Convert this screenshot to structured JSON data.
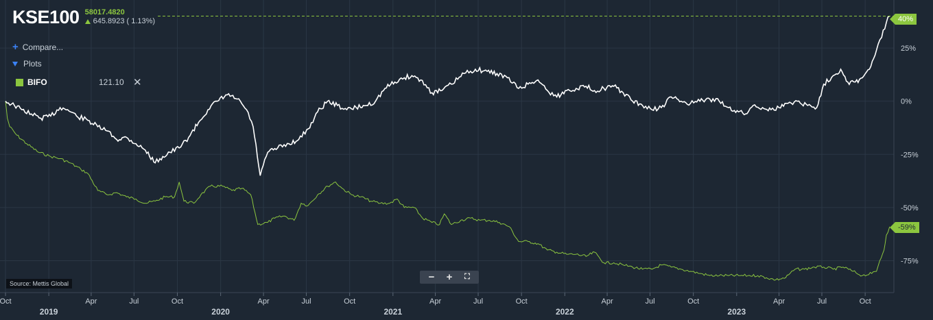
{
  "header": {
    "ticker": "KSE100",
    "price": "58017.4820",
    "change": "645.8923 ( 1.13%)"
  },
  "controls": {
    "compare_label": "Compare...",
    "plots_label": "Plots"
  },
  "compared_series": {
    "name": "BIFO",
    "value": "121.10",
    "remove_icon": "close-icon"
  },
  "source_label": "Source: Mettis Global",
  "zoom_controls": {
    "zoom_out": "−",
    "zoom_in": "+",
    "fullscreen": "⛶"
  },
  "price_tags": {
    "kse": "40%",
    "bifo": "-59%"
  },
  "colors": {
    "background": "#1d2733",
    "kse_line": "#ffffff",
    "bifo_line": "#8cc63f",
    "accent_blue": "#3b82f6",
    "gridline": "#2b3745"
  },
  "chart_data": {
    "type": "line",
    "title": "KSE100",
    "ylabel": "",
    "xlabel": "",
    "y_unit": "percent change",
    "ylim": [
      -90,
      45
    ],
    "xlim": [
      "2018-10-01",
      "2023-12-01"
    ],
    "y_ticks": [
      25,
      0,
      -25,
      -50,
      -75
    ],
    "y_tick_labels": [
      "25%",
      "0%",
      "-25%",
      "-50%",
      "-75%"
    ],
    "x_ticks": [
      {
        "date": "2018-10-01",
        "label": "Oct",
        "year": ""
      },
      {
        "date": "2019-01-01",
        "label": "",
        "year": "2019"
      },
      {
        "date": "2019-04-01",
        "label": "Apr",
        "year": ""
      },
      {
        "date": "2019-07-01",
        "label": "Jul",
        "year": ""
      },
      {
        "date": "2019-10-01",
        "label": "Oct",
        "year": ""
      },
      {
        "date": "2020-01-01",
        "label": "",
        "year": "2020"
      },
      {
        "date": "2020-04-01",
        "label": "Apr",
        "year": ""
      },
      {
        "date": "2020-07-01",
        "label": "Jul",
        "year": ""
      },
      {
        "date": "2020-10-01",
        "label": "Oct",
        "year": ""
      },
      {
        "date": "2021-01-01",
        "label": "",
        "year": "2021"
      },
      {
        "date": "2021-04-01",
        "label": "Apr",
        "year": ""
      },
      {
        "date": "2021-07-01",
        "label": "Jul",
        "year": ""
      },
      {
        "date": "2021-10-01",
        "label": "Oct",
        "year": ""
      },
      {
        "date": "2022-01-01",
        "label": "",
        "year": "2022"
      },
      {
        "date": "2022-04-01",
        "label": "Apr",
        "year": ""
      },
      {
        "date": "2022-07-01",
        "label": "Jul",
        "year": ""
      },
      {
        "date": "2022-10-01",
        "label": "Oct",
        "year": ""
      },
      {
        "date": "2023-01-01",
        "label": "",
        "year": "2023"
      },
      {
        "date": "2023-04-01",
        "label": "Apr",
        "year": ""
      },
      {
        "date": "2023-07-01",
        "label": "Jul",
        "year": ""
      },
      {
        "date": "2023-10-01",
        "label": "Oct",
        "year": ""
      }
    ],
    "grid": true,
    "series": [
      {
        "name": "KSE100",
        "color": "#ffffff",
        "points": [
          [
            "2018-10-01",
            0
          ],
          [
            "2018-10-20",
            -2
          ],
          [
            "2018-11-05",
            -4
          ],
          [
            "2018-11-25",
            -6
          ],
          [
            "2018-12-15",
            -8
          ],
          [
            "2019-01-05",
            -7
          ],
          [
            "2019-01-25",
            -3
          ],
          [
            "2019-02-10",
            -4
          ],
          [
            "2019-03-01",
            -7
          ],
          [
            "2019-03-25",
            -9
          ],
          [
            "2019-04-15",
            -12
          ],
          [
            "2019-05-05",
            -14
          ],
          [
            "2019-05-25",
            -18
          ],
          [
            "2019-06-15",
            -17
          ],
          [
            "2019-07-05",
            -20
          ],
          [
            "2019-07-25",
            -23
          ],
          [
            "2019-08-15",
            -29
          ],
          [
            "2019-08-25",
            -27
          ],
          [
            "2019-09-15",
            -24
          ],
          [
            "2019-10-05",
            -22
          ],
          [
            "2019-10-25",
            -17
          ],
          [
            "2019-11-15",
            -10
          ],
          [
            "2019-12-05",
            -4
          ],
          [
            "2019-12-25",
            0
          ],
          [
            "2020-01-15",
            3
          ],
          [
            "2020-02-05",
            1
          ],
          [
            "2020-02-25",
            -4
          ],
          [
            "2020-03-10",
            -12
          ],
          [
            "2020-03-25",
            -35
          ],
          [
            "2020-04-10",
            -24
          ],
          [
            "2020-05-01",
            -22
          ],
          [
            "2020-05-25",
            -20
          ],
          [
            "2020-06-15",
            -18
          ],
          [
            "2020-07-05",
            -13
          ],
          [
            "2020-07-25",
            -5
          ],
          [
            "2020-08-15",
            0
          ],
          [
            "2020-09-05",
            -2
          ],
          [
            "2020-09-25",
            -4
          ],
          [
            "2020-10-15",
            -3
          ],
          [
            "2020-11-05",
            -2
          ],
          [
            "2020-11-25",
            0
          ],
          [
            "2020-12-15",
            6
          ],
          [
            "2021-01-05",
            9
          ],
          [
            "2021-01-25",
            11
          ],
          [
            "2021-02-10",
            12
          ],
          [
            "2021-03-01",
            10
          ],
          [
            "2021-03-25",
            4
          ],
          [
            "2021-04-15",
            5
          ],
          [
            "2021-05-05",
            8
          ],
          [
            "2021-06-01",
            13
          ],
          [
            "2021-06-25",
            15
          ],
          [
            "2021-07-20",
            14
          ],
          [
            "2021-08-10",
            13
          ],
          [
            "2021-09-01",
            11
          ],
          [
            "2021-09-25",
            6
          ],
          [
            "2021-10-15",
            8
          ],
          [
            "2021-11-05",
            10
          ],
          [
            "2021-11-25",
            5
          ],
          [
            "2021-12-15",
            2
          ],
          [
            "2022-01-05",
            5
          ],
          [
            "2022-01-25",
            6
          ],
          [
            "2022-02-15",
            7
          ],
          [
            "2022-03-05",
            5
          ],
          [
            "2022-03-25",
            6
          ],
          [
            "2022-04-15",
            7
          ],
          [
            "2022-05-05",
            4
          ],
          [
            "2022-05-25",
            0
          ],
          [
            "2022-06-15",
            -2
          ],
          [
            "2022-07-05",
            -4
          ],
          [
            "2022-07-25",
            -3
          ],
          [
            "2022-08-15",
            2
          ],
          [
            "2022-09-05",
            0
          ],
          [
            "2022-09-25",
            -1
          ],
          [
            "2022-10-15",
            0
          ],
          [
            "2022-11-05",
            1
          ],
          [
            "2022-11-25",
            0
          ],
          [
            "2022-12-15",
            -3
          ],
          [
            "2023-01-05",
            -5
          ],
          [
            "2023-01-20",
            -6
          ],
          [
            "2023-02-05",
            -2
          ],
          [
            "2023-02-25",
            -3
          ],
          [
            "2023-03-15",
            -4
          ],
          [
            "2023-04-01",
            -3
          ],
          [
            "2023-04-20",
            -1
          ],
          [
            "2023-05-10",
            0
          ],
          [
            "2023-06-01",
            -2
          ],
          [
            "2023-06-20",
            -3
          ],
          [
            "2023-07-05",
            8
          ],
          [
            "2023-07-25",
            12
          ],
          [
            "2023-08-10",
            15
          ],
          [
            "2023-08-25",
            9
          ],
          [
            "2023-09-10",
            9
          ],
          [
            "2023-09-25",
            11
          ],
          [
            "2023-10-10",
            15
          ],
          [
            "2023-10-25",
            24
          ],
          [
            "2023-11-05",
            30
          ],
          [
            "2023-11-15",
            37
          ],
          [
            "2023-11-22",
            40
          ]
        ]
      },
      {
        "name": "BIFO",
        "color": "#8cc63f",
        "points": [
          [
            "2018-10-01",
            0
          ],
          [
            "2018-10-05",
            -8
          ],
          [
            "2018-10-10",
            -12
          ],
          [
            "2018-10-25",
            -16
          ],
          [
            "2018-11-15",
            -20
          ],
          [
            "2018-12-10",
            -24
          ],
          [
            "2019-01-05",
            -26
          ],
          [
            "2019-01-25",
            -27
          ],
          [
            "2019-02-15",
            -29
          ],
          [
            "2019-03-10",
            -32
          ],
          [
            "2019-03-25",
            -34
          ],
          [
            "2019-04-15",
            -42
          ],
          [
            "2019-05-05",
            -44
          ],
          [
            "2019-05-25",
            -43
          ],
          [
            "2019-06-15",
            -45
          ],
          [
            "2019-07-05",
            -46
          ],
          [
            "2019-07-25",
            -48
          ],
          [
            "2019-08-15",
            -47
          ],
          [
            "2019-09-05",
            -45
          ],
          [
            "2019-09-25",
            -45
          ],
          [
            "2019-10-05",
            -38
          ],
          [
            "2019-10-15",
            -47
          ],
          [
            "2019-11-05",
            -48
          ],
          [
            "2019-11-20",
            -44
          ],
          [
            "2019-12-10",
            -40
          ],
          [
            "2020-01-05",
            -40
          ],
          [
            "2020-01-25",
            -42
          ],
          [
            "2020-02-15",
            -41
          ],
          [
            "2020-03-05",
            -44
          ],
          [
            "2020-03-20",
            -58
          ],
          [
            "2020-04-10",
            -57
          ],
          [
            "2020-04-25",
            -55
          ],
          [
            "2020-05-15",
            -54
          ],
          [
            "2020-06-05",
            -56
          ],
          [
            "2020-06-20",
            -48
          ],
          [
            "2020-07-05",
            -49
          ],
          [
            "2020-07-25",
            -44
          ],
          [
            "2020-08-15",
            -40
          ],
          [
            "2020-09-01",
            -38
          ],
          [
            "2020-09-15",
            -41
          ],
          [
            "2020-10-05",
            -44
          ],
          [
            "2020-10-25",
            -45
          ],
          [
            "2020-11-15",
            -47
          ],
          [
            "2020-12-05",
            -48
          ],
          [
            "2020-12-25",
            -48
          ],
          [
            "2021-01-10",
            -46
          ],
          [
            "2021-01-25",
            -50
          ],
          [
            "2021-02-15",
            -50
          ],
          [
            "2021-03-05",
            -55
          ],
          [
            "2021-03-25",
            -57
          ],
          [
            "2021-04-10",
            -58
          ],
          [
            "2021-04-20",
            -53
          ],
          [
            "2021-05-05",
            -58
          ],
          [
            "2021-05-25",
            -56
          ],
          [
            "2021-06-15",
            -55
          ],
          [
            "2021-07-05",
            -56
          ],
          [
            "2021-07-25",
            -56
          ],
          [
            "2021-08-15",
            -57
          ],
          [
            "2021-09-05",
            -59
          ],
          [
            "2021-09-25",
            -66
          ],
          [
            "2021-10-15",
            -66
          ],
          [
            "2021-11-05",
            -67
          ],
          [
            "2021-11-25",
            -70
          ],
          [
            "2021-12-15",
            -71
          ],
          [
            "2022-01-05",
            -72
          ],
          [
            "2022-01-25",
            -72
          ],
          [
            "2022-02-15",
            -73
          ],
          [
            "2022-03-05",
            -71
          ],
          [
            "2022-03-25",
            -76
          ],
          [
            "2022-04-15",
            -76
          ],
          [
            "2022-05-05",
            -77
          ],
          [
            "2022-05-25",
            -78
          ],
          [
            "2022-06-15",
            -79
          ],
          [
            "2022-07-05",
            -79
          ],
          [
            "2022-07-25",
            -77
          ],
          [
            "2022-08-15",
            -78
          ],
          [
            "2022-09-05",
            -79
          ],
          [
            "2022-09-25",
            -80
          ],
          [
            "2022-10-15",
            -81
          ],
          [
            "2022-11-05",
            -82
          ],
          [
            "2022-11-25",
            -82
          ],
          [
            "2022-12-15",
            -82
          ],
          [
            "2023-01-05",
            -82
          ],
          [
            "2023-01-25",
            -82
          ],
          [
            "2023-02-15",
            -82
          ],
          [
            "2023-03-05",
            -83
          ],
          [
            "2023-03-25",
            -84
          ],
          [
            "2023-04-15",
            -83
          ],
          [
            "2023-05-05",
            -79
          ],
          [
            "2023-05-25",
            -79
          ],
          [
            "2023-06-15",
            -78
          ],
          [
            "2023-07-05",
            -78
          ],
          [
            "2023-07-25",
            -79
          ],
          [
            "2023-08-15",
            -78
          ],
          [
            "2023-09-05",
            -80
          ],
          [
            "2023-09-25",
            -82
          ],
          [
            "2023-10-15",
            -81
          ],
          [
            "2023-10-25",
            -80
          ],
          [
            "2023-11-01",
            -75
          ],
          [
            "2023-11-10",
            -70
          ],
          [
            "2023-11-15",
            -63
          ],
          [
            "2023-11-22",
            -59
          ]
        ]
      }
    ]
  }
}
